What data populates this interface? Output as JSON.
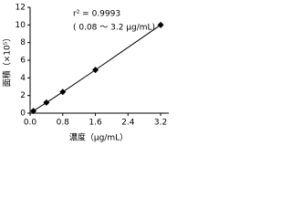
{
  "chart_data": {
    "type": "scatter",
    "annotations": [
      "r² = 0.9993",
      "( 0.08 ～ 3.2 μg/mL)"
    ],
    "x_label": "濃度（μg/mL）",
    "y_label": "面積（×10⁵）",
    "x": [
      0.08,
      0.4,
      0.8,
      1.6,
      3.2
    ],
    "series": [
      {
        "color": "#000000",
        "values": [
          0.25,
          1.2,
          2.4,
          4.9,
          10.0
        ]
      }
    ],
    "marker": "diamond",
    "connect": true,
    "xlim": [
      0,
      3.4
    ],
    "ylim": [
      0,
      12
    ],
    "xticks": [
      {
        "value": 0,
        "label": "0.0"
      },
      0.8,
      1.6,
      2.4,
      3.2
    ],
    "yticks": [
      0,
      2,
      4,
      6,
      8,
      10,
      12
    ]
  }
}
